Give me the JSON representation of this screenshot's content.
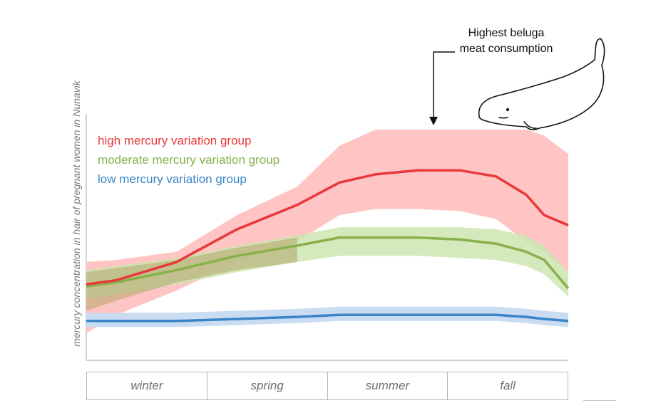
{
  "chart_data": {
    "type": "area",
    "ylabel": "mercury concentration in hair of pregnant women in Nunavik",
    "xlabel": "",
    "x_period_labels": [
      "winter",
      "spring",
      "summer",
      "fall"
    ],
    "x": [
      0,
      0.5,
      1.5,
      2.5,
      3.5,
      4.2,
      4.8,
      5.5,
      6.2,
      6.8,
      7.3,
      7.6,
      8.0
    ],
    "ylim": [
      0,
      100
    ],
    "grid": false,
    "legend_placement": "top-left",
    "series": [
      {
        "name": "high mercury variation group",
        "color": "#e8393a",
        "band_color": "#ffc4c4",
        "values": [
          24,
          26,
          35,
          51,
          63,
          74,
          78,
          80,
          80,
          77,
          68,
          58,
          53
        ],
        "lower": [
          0,
          9,
          21,
          35,
          45,
          58,
          61,
          61,
          60,
          56,
          45,
          40,
          30
        ],
        "upper": [
          35,
          36,
          40,
          58,
          72,
          92,
          100,
          100,
          100,
          100,
          100,
          97,
          88
        ]
      },
      {
        "name": "moderate mercury variation group",
        "color": "#88b04b",
        "band_color": "#cde5b0",
        "values": [
          23,
          25,
          31,
          38,
          43,
          47,
          47,
          47,
          46,
          44,
          40,
          36,
          22
        ],
        "lower": [
          17,
          19,
          24,
          30,
          35,
          38,
          38,
          38,
          37,
          36,
          33,
          29,
          18
        ],
        "upper": [
          31,
          33,
          37,
          43,
          48,
          52,
          52,
          52,
          52,
          51,
          48,
          43,
          30
        ],
        "extra_band_lower": [
          11,
          16,
          25,
          31,
          35
        ],
        "extra_band_upper": [
          30,
          32,
          36,
          42,
          47
        ]
      },
      {
        "name": "low mercury variation group",
        "color": "#3a85c8",
        "band_color": "#c9dcf2",
        "values": [
          6,
          6,
          6,
          7,
          8,
          9,
          9,
          9,
          9,
          9,
          8,
          7,
          6
        ],
        "lower": [
          3,
          3,
          3,
          4,
          5,
          6,
          6,
          6,
          6,
          6,
          5,
          4,
          3
        ],
        "upper": [
          10,
          10,
          10,
          11,
          12,
          13,
          13,
          13,
          13,
          13,
          12,
          11,
          10
        ]
      }
    ]
  },
  "annotation": {
    "text_line1": "Highest beluga",
    "text_line2": "meat consumption"
  },
  "icons": [
    "beluga-whale-icon",
    "arrow-down-icon"
  ]
}
